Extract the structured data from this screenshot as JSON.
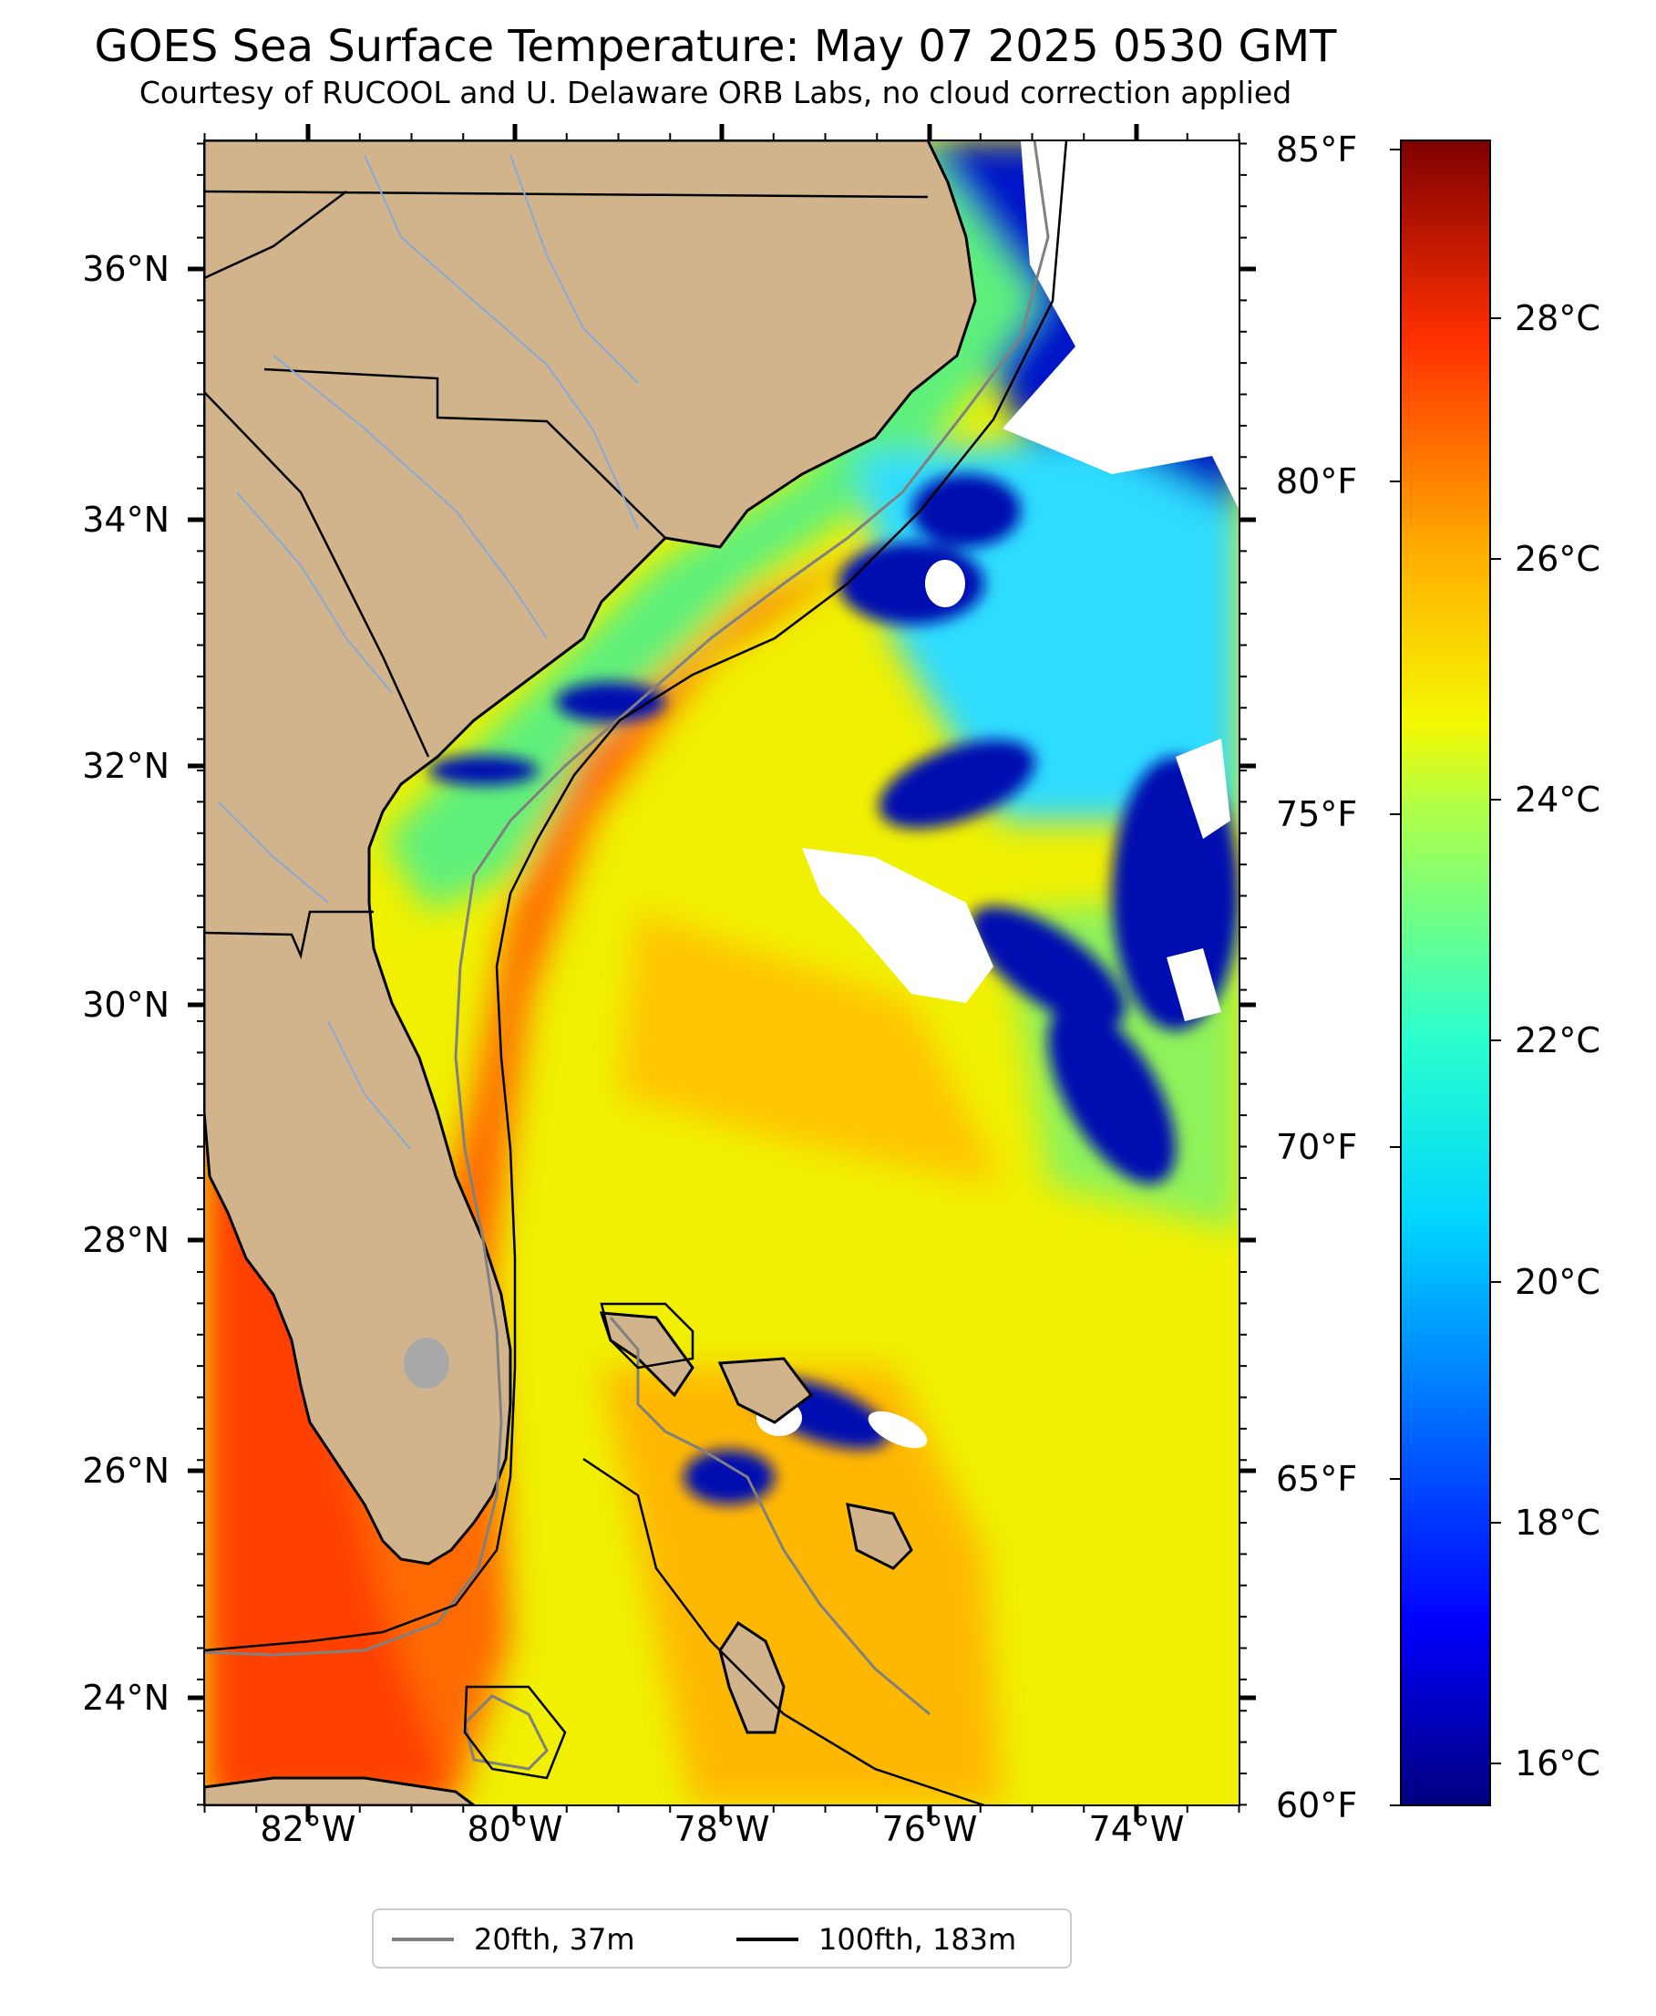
{
  "title": "GOES Sea Surface Temperature: May 07 2025 0530 GMT",
  "subtitle": "Courtesy of RUCOOL and U. Delaware ORB Labs, no cloud correction applied",
  "map": {
    "extent": {
      "lon": [
        -83,
        -73
      ],
      "lat": [
        23.1,
        37
      ]
    },
    "lat_labels": [
      "36°N",
      "34°N",
      "32°N",
      "30°N",
      "28°N",
      "26°N",
      "24°N"
    ],
    "lat_values": [
      36,
      34,
      32,
      30,
      28,
      26,
      24
    ],
    "lon_labels": [
      "82°W",
      "80°W",
      "78°W",
      "76°W",
      "74°W"
    ],
    "lon_values": [
      -82,
      -80,
      -78,
      -76,
      -74
    ],
    "colors": {
      "land": "#d2b48c",
      "inland_water": "#a8a8a8",
      "river": "#87a9d6",
      "cloud_mask": "#ffffff",
      "contour_20fth": "#808080",
      "contour_100fth": "#000000"
    }
  },
  "colorbar": {
    "colormap": "jet",
    "range_c": [
      15.6,
      29.4
    ],
    "celsius_labels": [
      "28°C",
      "26°C",
      "24°C",
      "22°C",
      "20°C",
      "18°C",
      "16°C"
    ],
    "celsius_values": [
      28,
      26,
      24,
      22,
      20,
      18,
      16
    ],
    "fahrenheit_labels": [
      "85°F",
      "80°F",
      "75°F",
      "70°F",
      "65°F",
      "60°F"
    ],
    "fahrenheit_values": [
      85,
      80,
      75,
      70,
      65,
      60
    ]
  },
  "legend": {
    "items": [
      {
        "label": "20fth, 37m",
        "color": "#808080"
      },
      {
        "label": "100fth, 183m",
        "color": "#000000"
      }
    ]
  }
}
